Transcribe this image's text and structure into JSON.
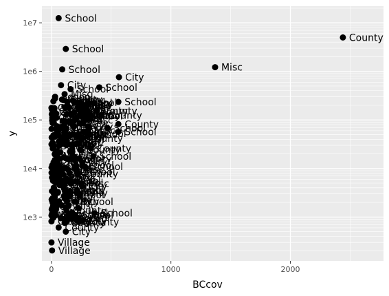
{
  "chart_data": {
    "type": "scatter",
    "title": "",
    "xlabel": "BCcov",
    "ylabel": "y",
    "x_scale": "linear",
    "y_scale": "log10",
    "xlim": [
      -80,
      2780
    ],
    "ylim": [
      125,
      22000000
    ],
    "x_ticks": [
      0,
      1000,
      2000
    ],
    "x_tick_labels": [
      "0",
      "1000",
      "2000"
    ],
    "y_ticks": [
      1000,
      10000,
      100000,
      1000000,
      10000000
    ],
    "y_tick_labels": [
      "1e3",
      "1e4",
      "1e5",
      "1e6",
      "1e7"
    ],
    "grid": true,
    "legend": "none",
    "colors": {
      "panel": "#ebebeb",
      "grid": "#ffffff",
      "point": "#000000"
    },
    "points": [
      {
        "x": 60,
        "y": 12500000,
        "label": "School"
      },
      {
        "x": 120,
        "y": 2900000,
        "label": "School"
      },
      {
        "x": 90,
        "y": 1100000,
        "label": "School"
      },
      {
        "x": 2440,
        "y": 5000000,
        "label": "County"
      },
      {
        "x": 1370,
        "y": 1220000,
        "label": "Misc"
      },
      {
        "x": 565,
        "y": 760000,
        "label": "City"
      },
      {
        "x": 80,
        "y": 520000,
        "label": "City"
      },
      {
        "x": 160,
        "y": 430000,
        "label": "School"
      },
      {
        "x": 400,
        "y": 470000,
        "label": "School"
      },
      {
        "x": 110,
        "y": 340000,
        "label": "Misc"
      },
      {
        "x": 30,
        "y": 300000,
        "label": "School"
      },
      {
        "x": 560,
        "y": 235000,
        "label": "School"
      },
      {
        "x": 180,
        "y": 250000,
        "label": "Misc"
      },
      {
        "x": 300,
        "y": 210000,
        "label": "City"
      },
      {
        "x": 150,
        "y": 180000,
        "label": "City"
      },
      {
        "x": 380,
        "y": 155000,
        "label": "County"
      },
      {
        "x": 420,
        "y": 125000,
        "label": "County"
      },
      {
        "x": 210,
        "y": 110000,
        "label": "Misc"
      },
      {
        "x": 560,
        "y": 82000,
        "label": "County"
      },
      {
        "x": 470,
        "y": 68000,
        "label": "School"
      },
      {
        "x": 560,
        "y": 57000,
        "label": "School"
      },
      {
        "x": 260,
        "y": 42000,
        "label": "County"
      },
      {
        "x": 330,
        "y": 26000,
        "label": "County"
      },
      {
        "x": 350,
        "y": 18000,
        "label": "School"
      },
      {
        "x": 280,
        "y": 11000,
        "label": "School"
      },
      {
        "x": 220,
        "y": 7800,
        "label": "County"
      },
      {
        "x": 160,
        "y": 3300,
        "label": "City"
      },
      {
        "x": 130,
        "y": 2100,
        "label": "City"
      },
      {
        "x": 360,
        "y": 1200,
        "label": "School"
      },
      {
        "x": 200,
        "y": 1100,
        "label": "School"
      },
      {
        "x": 110,
        "y": 760,
        "label": "County"
      },
      {
        "x": 60,
        "y": 610,
        "label": "County"
      },
      {
        "x": 120,
        "y": 500,
        "label": "City"
      },
      {
        "x": 0,
        "y": 300,
        "label": "Village"
      },
      {
        "x": 5,
        "y": 205,
        "label": "Village"
      }
    ]
  }
}
